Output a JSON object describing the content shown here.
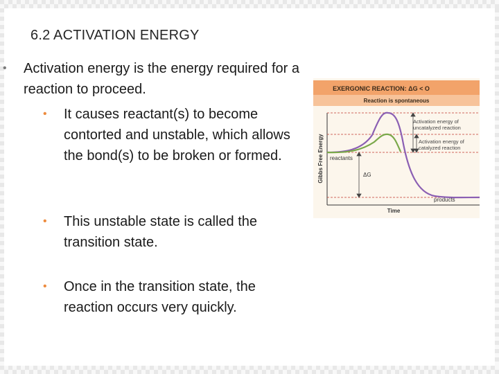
{
  "slide": {
    "title": "6.2 ACTIVATION ENERGY",
    "bullets": [
      "Activation energy is the energy required for a reaction to proceed.",
      "It causes reactant(s) to become contorted and unstable, which allows the bond(s) to be broken or formed.",
      "This unstable state is called the transition state.",
      "Once in the transition state, the reaction occurs very quickly."
    ]
  },
  "diagram": {
    "header": "EXERGONIC REACTION: ΔG < O",
    "subheader": "Reaction is spontaneous",
    "y_axis_label": "Gibbs Free Energy",
    "x_axis_label": "Time",
    "label_reactants": "reactants",
    "label_products": "products",
    "label_delta_g": "ΔG",
    "label_uncatalyzed_1": "Activation energy of",
    "label_uncatalyzed_2": "uncatalyzed reaction",
    "label_catalyzed_1": "Activation energy of",
    "label_catalyzed_2": "catalyzed reaction",
    "colors": {
      "header_bg": "#f2a36a",
      "subheader_bg": "#f7c39a",
      "panel_bg": "#fcf6ec",
      "uncatalyzed_curve": "#8b5fb3",
      "catalyzed_curve": "#7aa84a",
      "guide_lines": "#c0392b",
      "bullet_accent": "#ed8b3e"
    }
  }
}
